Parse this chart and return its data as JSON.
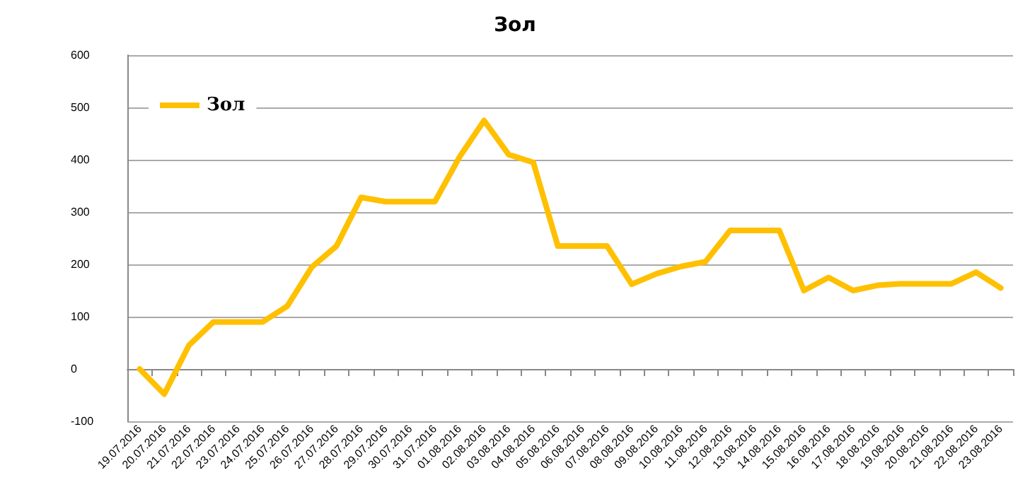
{
  "chart_data": {
    "type": "line",
    "title": "Зол",
    "categories": [
      "19.07.2016",
      "20.07.2016",
      "21.07.2016",
      "22.07.2016",
      "23.07.2016",
      "24.07.2016",
      "25.07.2016",
      "26.07.2016",
      "27.07.2016",
      "28.07.2016",
      "29.07.2016",
      "30.07.2016",
      "31.07.2016",
      "01.08.2016",
      "02.08.2016",
      "03.08.2016",
      "04.08.2016",
      "05.08.2016",
      "06.08.2016",
      "07.08.2016",
      "08.08.2016",
      "09.08.2016",
      "10.08.2016",
      "11.08.2016",
      "12.08.2016",
      "13.08.2016",
      "14.08.2016",
      "15.08.2016",
      "16.08.2016",
      "17.08.2016",
      "18.08.2016",
      "19.08.2016",
      "20.08.2016",
      "21.08.2016",
      "22.08.2016",
      "23.08.2016"
    ],
    "series": [
      {
        "name": "Зол",
        "color": "#ffc000",
        "values": [
          0,
          -48,
          45,
          90,
          90,
          90,
          120,
          195,
          235,
          328,
          320,
          320,
          320,
          405,
          475,
          410,
          395,
          235,
          235,
          235,
          162,
          182,
          196,
          205,
          265,
          265,
          265,
          150,
          175,
          150,
          160,
          163,
          163,
          163,
          185,
          155
        ]
      }
    ],
    "ylim": [
      -100,
      600
    ],
    "yticks": [
      -100,
      0,
      100,
      200,
      300,
      400,
      500,
      600
    ],
    "grid": "y",
    "legend": "top left",
    "marker": "none",
    "line_style": "solid"
  }
}
